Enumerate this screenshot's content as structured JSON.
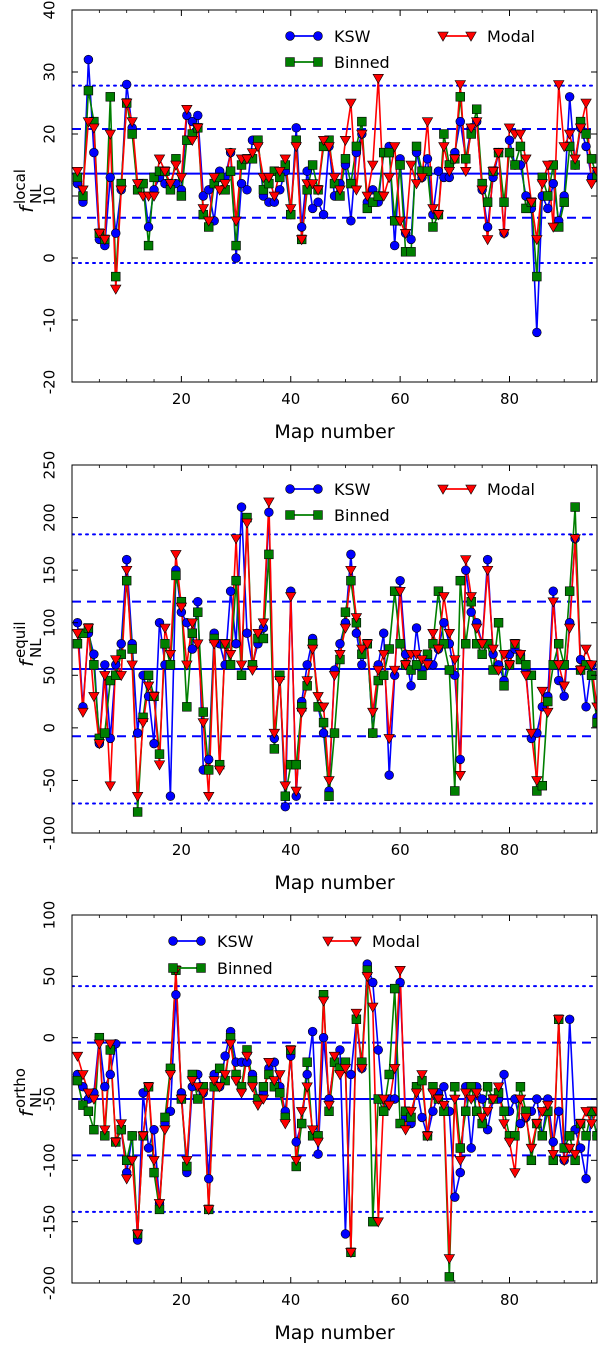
{
  "colors": {
    "ksw": "#0000ff",
    "binned": "#007f00",
    "modal": "#ff0000",
    "reference": "#0000ff"
  },
  "chart_data": [
    {
      "type": "line",
      "ylabel_main": "f",
      "ylabel_sup": "local",
      "ylabel_sub": "NL",
      "xlabel": "Map number",
      "xlim": [
        0,
        96
      ],
      "ylim": [
        -20,
        40
      ],
      "xticks": [
        20,
        40,
        60,
        80
      ],
      "yticks": [
        -20,
        -10,
        0,
        10,
        20,
        30,
        40
      ],
      "reference_lines": {
        "mean": 13.6,
        "one_sigma": [
          6.5,
          20.8
        ],
        "two_sigma": [
          -0.8,
          27.8
        ]
      },
      "legend": {
        "columns": 2,
        "position": "top-right"
      },
      "series": [
        {
          "name": "KSW",
          "marker": "circle",
          "values": [
            12,
            9,
            32,
            17,
            3,
            2,
            13,
            4,
            11,
            28,
            21,
            11,
            12,
            5,
            11,
            13,
            12,
            12,
            12,
            11,
            23,
            22,
            23,
            10,
            11,
            6,
            14,
            13,
            17,
            0,
            12,
            11,
            19,
            19,
            10,
            9,
            9,
            11,
            14,
            7,
            21,
            5,
            14,
            8,
            9,
            7,
            18,
            10,
            12,
            15,
            6,
            17,
            20,
            9,
            11,
            9,
            17,
            18,
            2,
            16,
            4,
            3,
            17,
            13,
            16,
            7,
            14,
            13,
            13,
            17,
            22,
            16,
            21,
            22,
            11,
            5,
            13,
            17,
            4,
            19,
            15,
            15,
            10,
            8,
            -12,
            10,
            8,
            12,
            6,
            10,
            26,
            15,
            21,
            18,
            13,
            14
          ]
        },
        {
          "name": "Binned",
          "marker": "square",
          "values": [
            13,
            10,
            27,
            22,
            4,
            3,
            26,
            -3,
            12,
            25,
            20,
            11,
            12,
            2,
            13,
            14,
            14,
            11,
            16,
            10,
            19,
            20,
            21,
            7,
            5,
            12,
            13,
            11,
            14,
            2,
            15,
            16,
            16,
            19,
            11,
            12,
            14,
            13,
            15,
            7,
            19,
            3,
            11,
            15,
            11,
            18,
            19,
            12,
            10,
            16,
            12,
            18,
            22,
            8,
            9,
            10,
            17,
            17,
            6,
            15,
            1,
            1,
            18,
            14,
            14,
            5,
            7,
            20,
            15,
            16,
            26,
            16,
            20,
            24,
            12,
            9,
            14,
            17,
            9,
            17,
            15,
            18,
            8,
            9,
            -3,
            13,
            10,
            15,
            5,
            9,
            18,
            15,
            22,
            20,
            16,
            13
          ]
        },
        {
          "name": "Modal",
          "marker": "triangle-down",
          "values": [
            14,
            11,
            22,
            21,
            4,
            3,
            20,
            -5,
            11,
            25,
            22,
            12,
            10,
            10,
            10,
            16,
            14,
            12,
            15,
            13,
            24,
            19,
            21,
            8,
            6,
            13,
            11,
            12,
            17,
            6,
            16,
            16,
            17,
            18,
            13,
            13,
            10,
            14,
            16,
            8,
            18,
            3,
            12,
            12,
            11,
            19,
            18,
            13,
            11,
            19,
            25,
            11,
            20,
            10,
            15,
            29,
            10,
            13,
            18,
            6,
            4,
            15,
            12,
            13,
            22,
            8,
            7,
            18,
            14,
            16,
            28,
            14,
            21,
            22,
            11,
            3,
            14,
            17,
            4,
            21,
            20,
            20,
            16,
            9,
            3,
            12,
            15,
            5,
            28,
            18,
            20,
            16,
            21,
            25,
            12,
            14
          ]
        }
      ]
    },
    {
      "type": "line",
      "ylabel_main": "f",
      "ylabel_sup": "equil",
      "ylabel_sub": "NL",
      "xlabel": "Map number",
      "xlim": [
        0,
        96
      ],
      "ylim": [
        -100,
        250
      ],
      "xticks": [
        20,
        40,
        60,
        80
      ],
      "yticks": [
        -100,
        -50,
        0,
        50,
        100,
        150,
        200,
        250
      ],
      "reference_lines": {
        "mean": 56,
        "one_sigma": [
          -8,
          120
        ],
        "two_sigma": [
          -72,
          184
        ]
      },
      "legend": {
        "columns": 2,
        "position": "top-right"
      },
      "series": [
        {
          "name": "KSW",
          "marker": "circle",
          "values": [
            100,
            20,
            90,
            70,
            -15,
            60,
            -10,
            60,
            80,
            160,
            80,
            -5,
            50,
            30,
            -15,
            100,
            60,
            -65,
            150,
            110,
            100,
            75,
            120,
            -40,
            -30,
            90,
            80,
            60,
            130,
            80,
            210,
            90,
            60,
            80,
            95,
            205,
            -10,
            50,
            -75,
            130,
            -65,
            25,
            60,
            85,
            20,
            -5,
            -60,
            55,
            80,
            100,
            165,
            90,
            60,
            80,
            -5,
            60,
            90,
            -45,
            50,
            140,
            70,
            40,
            95,
            55,
            65,
            60,
            75,
            100,
            80,
            50,
            -30,
            150,
            110,
            100,
            80,
            160,
            70,
            60,
            45,
            70,
            75,
            70,
            55,
            -10,
            -5,
            20,
            30,
            130,
            45,
            30,
            100,
            180,
            65,
            20,
            60,
            10
          ]
        },
        {
          "name": "Binned",
          "marker": "square",
          "values": [
            80,
            90,
            95,
            60,
            -10,
            -5,
            45,
            50,
            70,
            140,
            75,
            -80,
            10,
            50,
            30,
            -25,
            80,
            60,
            145,
            120,
            20,
            90,
            110,
            15,
            -40,
            85,
            -35,
            80,
            60,
            140,
            50,
            200,
            60,
            85,
            85,
            165,
            -20,
            50,
            -65,
            -35,
            -35,
            20,
            40,
            80,
            20,
            5,
            -65,
            -5,
            65,
            110,
            140,
            100,
            70,
            80,
            -5,
            45,
            50,
            75,
            130,
            80,
            60,
            55,
            60,
            50,
            70,
            80,
            130,
            80,
            55,
            -60,
            140,
            80,
            120,
            80,
            70,
            80,
            55,
            100,
            40,
            60,
            80,
            65,
            60,
            50,
            -60,
            -55,
            25,
            60,
            80,
            60,
            130,
            210,
            55,
            60,
            50,
            5
          ]
        },
        {
          "name": "Modal",
          "marker": "triangle-down",
          "values": [
            90,
            15,
            95,
            30,
            -15,
            50,
            -55,
            65,
            50,
            150,
            60,
            -65,
            5,
            40,
            30,
            -35,
            95,
            70,
            165,
            115,
            60,
            100,
            80,
            5,
            -65,
            80,
            -40,
            80,
            70,
            180,
            60,
            195,
            55,
            90,
            100,
            215,
            -5,
            45,
            -55,
            125,
            -60,
            15,
            45,
            75,
            30,
            20,
            -50,
            50,
            70,
            95,
            150,
            105,
            75,
            80,
            15,
            55,
            70,
            -10,
            55,
            130,
            60,
            70,
            70,
            65,
            60,
            90,
            75,
            125,
            90,
            65,
            -45,
            160,
            125,
            95,
            80,
            150,
            75,
            55,
            70,
            60,
            80,
            70,
            50,
            -5,
            -50,
            35,
            15,
            120,
            60,
            40,
            95,
            180,
            55,
            75,
            60,
            20
          ]
        }
      ]
    },
    {
      "type": "line",
      "ylabel_main": "f",
      "ylabel_sup": "ortho",
      "ylabel_sub": "NL",
      "xlabel": "Map number",
      "xlim": [
        0,
        96
      ],
      "ylim": [
        -200,
        100
      ],
      "xticks": [
        20,
        40,
        60,
        80
      ],
      "yticks": [
        -200,
        -150,
        -100,
        -50,
        0,
        50,
        100
      ],
      "reference_lines": {
        "mean": -50,
        "one_sigma": [
          -96,
          -4
        ],
        "two_sigma": [
          -142,
          42
        ]
      },
      "legend": {
        "columns": 2,
        "position": "top-center"
      },
      "series": [
        {
          "name": "KSW",
          "marker": "circle",
          "values": [
            -30,
            -40,
            -50,
            -45,
            0,
            -40,
            -30,
            -5,
            -75,
            -110,
            -80,
            -165,
            -45,
            -90,
            -75,
            -135,
            -70,
            -60,
            35,
            -45,
            -110,
            -40,
            -30,
            -45,
            -115,
            -30,
            -40,
            -15,
            5,
            -20,
            -20,
            -20,
            -30,
            -50,
            -45,
            -25,
            -20,
            -40,
            -60,
            -15,
            -85,
            -70,
            -30,
            5,
            -95,
            0,
            -50,
            -20,
            -10,
            -160,
            -30,
            15,
            -25,
            60,
            45,
            -10,
            -60,
            -50,
            -50,
            45,
            -65,
            -70,
            -40,
            -65,
            -80,
            -60,
            -45,
            -40,
            -60,
            -130,
            -110,
            -40,
            -90,
            -40,
            -50,
            -75,
            -50,
            -50,
            -30,
            -60,
            -50,
            -70,
            -65,
            -60,
            -50,
            -80,
            -50,
            -85,
            -60,
            -100,
            15,
            -75,
            -90,
            -115,
            -60,
            -80
          ]
        },
        {
          "name": "Binned",
          "marker": "square",
          "values": [
            -35,
            -55,
            -60,
            -75,
            0,
            -80,
            -10,
            -85,
            -75,
            -100,
            -80,
            -160,
            -80,
            -40,
            -110,
            -140,
            -65,
            -25,
            55,
            -50,
            -105,
            -30,
            -50,
            -40,
            -140,
            -40,
            -25,
            -35,
            0,
            -30,
            -40,
            -10,
            -35,
            -50,
            -40,
            -30,
            -40,
            -45,
            -65,
            -10,
            -105,
            -70,
            -20,
            -80,
            -80,
            35,
            -60,
            -20,
            -25,
            -20,
            -175,
            15,
            -20,
            55,
            -150,
            -50,
            -60,
            -30,
            40,
            -70,
            -60,
            -65,
            -40,
            -35,
            -80,
            -40,
            -50,
            -60,
            -195,
            -40,
            -90,
            -60,
            -40,
            -60,
            -70,
            -40,
            -50,
            -45,
            -60,
            -80,
            -80,
            -40,
            -60,
            -100,
            -70,
            -80,
            -60,
            -100,
            15,
            -90,
            -80,
            -100,
            -70,
            -80,
            -60,
            -80
          ]
        },
        {
          "name": "Modal",
          "marker": "triangle-down",
          "values": [
            -15,
            -30,
            -45,
            -50,
            -5,
            -75,
            -5,
            -85,
            -70,
            -115,
            -100,
            -160,
            -80,
            -40,
            -100,
            -135,
            -75,
            -30,
            55,
            -50,
            -100,
            -35,
            -40,
            -45,
            -140,
            -35,
            -40,
            -30,
            -5,
            -35,
            -45,
            -15,
            -40,
            -55,
            -50,
            -20,
            -35,
            -30,
            -70,
            -10,
            -100,
            -60,
            -40,
            -75,
            -85,
            30,
            -55,
            -15,
            -30,
            -25,
            -175,
            20,
            -25,
            50,
            25,
            -150,
            -50,
            -55,
            -25,
            55,
            -75,
            -60,
            -45,
            -30,
            -80,
            -45,
            -50,
            -55,
            -180,
            -50,
            -100,
            -45,
            -50,
            -45,
            -65,
            -60,
            -50,
            -40,
            -70,
            -85,
            -110,
            -50,
            -65,
            -90,
            -70,
            -60,
            -55,
            -95,
            15,
            -100,
            -90,
            -95,
            -70,
            -60,
            -70,
            -60
          ]
        }
      ]
    }
  ]
}
